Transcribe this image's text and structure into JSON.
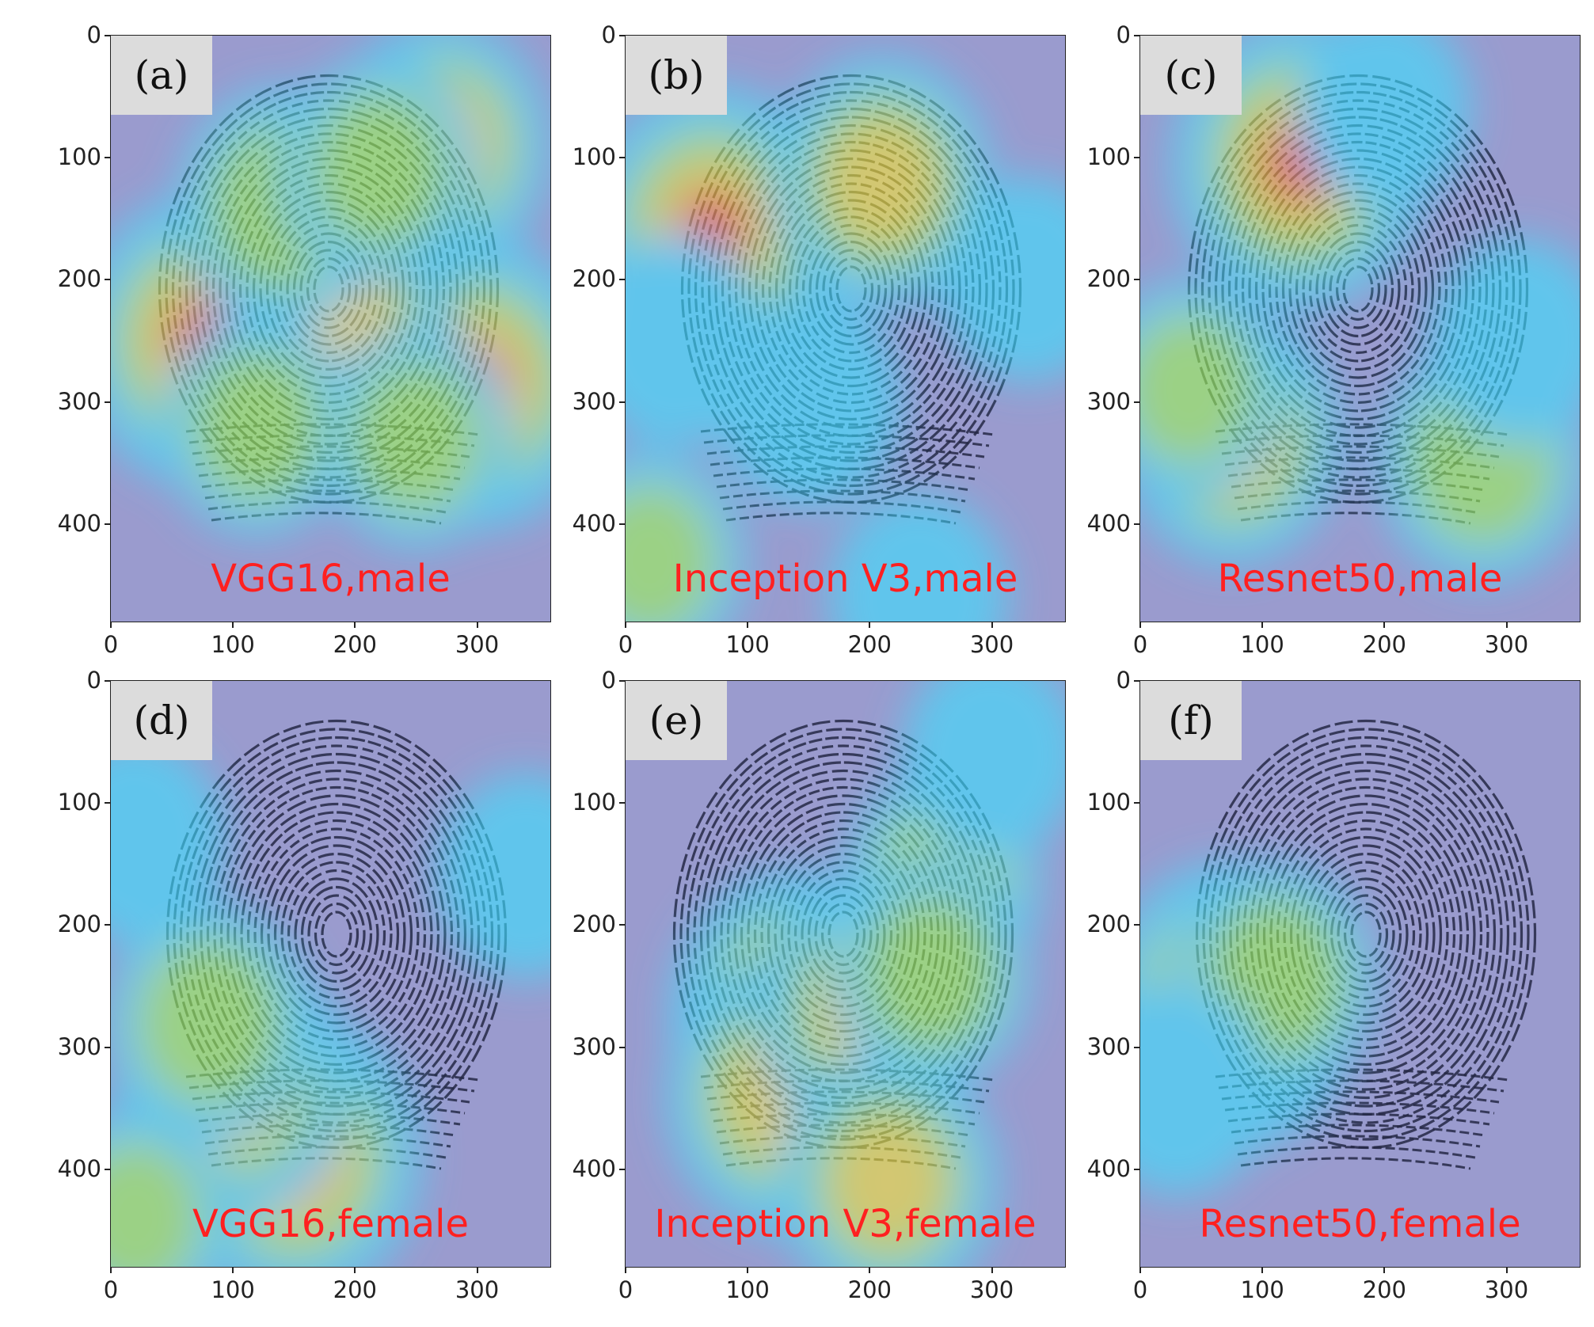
{
  "figure": {
    "caption_color": "#ff2020",
    "axis": {
      "x_ticks": [
        0,
        100,
        200,
        300
      ],
      "y_ticks": [
        0,
        100,
        200,
        300,
        400
      ],
      "x_range": [
        0,
        360
      ],
      "y_range": [
        0,
        480
      ]
    },
    "panels": [
      {
        "tag": "(a)",
        "caption": "VGG16,male",
        "hotspots": [
          {
            "x": 75,
            "y": 250,
            "level": 1.0
          },
          {
            "x": 300,
            "y": 285,
            "level": 1.0
          },
          {
            "x": 185,
            "y": 230,
            "level": 0.8
          },
          {
            "x": 270,
            "y": 90,
            "level": 0.7
          },
          {
            "x": 140,
            "y": 140,
            "level": 0.6
          },
          {
            "x": 220,
            "y": 110,
            "level": 0.5
          },
          {
            "x": 120,
            "y": 320,
            "level": 0.45
          },
          {
            "x": 250,
            "y": 330,
            "level": 0.45
          }
        ]
      },
      {
        "tag": "(b)",
        "caption": "Inception V3,male",
        "hotspots": [
          {
            "x": 70,
            "y": 160,
            "level": 1.0
          },
          {
            "x": 210,
            "y": 120,
            "level": 0.7
          },
          {
            "x": 40,
            "y": 250,
            "level": 0.4
          },
          {
            "x": 20,
            "y": 430,
            "level": 0.45
          },
          {
            "x": 150,
            "y": 300,
            "level": 0.4
          },
          {
            "x": 330,
            "y": 200,
            "level": 0.35
          },
          {
            "x": 240,
            "y": 460,
            "level": 0.35
          }
        ]
      },
      {
        "tag": "(c)",
        "caption": "Resnet50,male",
        "hotspots": [
          {
            "x": 130,
            "y": 105,
            "level": 1.0
          },
          {
            "x": 75,
            "y": 330,
            "level": 0.7
          },
          {
            "x": 280,
            "y": 350,
            "level": 0.6
          },
          {
            "x": 40,
            "y": 290,
            "level": 0.45
          },
          {
            "x": 310,
            "y": 250,
            "level": 0.35
          },
          {
            "x": 200,
            "y": 60,
            "level": 0.3
          }
        ]
      },
      {
        "tag": "(d)",
        "caption": "VGG16,female",
        "hotspots": [
          {
            "x": 150,
            "y": 390,
            "level": 1.0
          },
          {
            "x": 100,
            "y": 330,
            "level": 0.85
          },
          {
            "x": 80,
            "y": 280,
            "level": 0.6
          },
          {
            "x": 20,
            "y": 440,
            "level": 0.45
          },
          {
            "x": 340,
            "y": 160,
            "level": 0.35
          },
          {
            "x": 20,
            "y": 130,
            "level": 0.35
          }
        ]
      },
      {
        "tag": "(e)",
        "caption": "Inception V3,female",
        "hotspots": [
          {
            "x": 140,
            "y": 275,
            "level": 1.0
          },
          {
            "x": 130,
            "y": 340,
            "level": 0.85
          },
          {
            "x": 200,
            "y": 270,
            "level": 0.75
          },
          {
            "x": 215,
            "y": 410,
            "level": 0.7
          },
          {
            "x": 260,
            "y": 165,
            "level": 0.5
          },
          {
            "x": 250,
            "y": 240,
            "level": 0.5
          },
          {
            "x": 300,
            "y": 60,
            "level": 0.35
          }
        ]
      },
      {
        "tag": "(f)",
        "caption": "Resnet50,female",
        "hotspots": [
          {
            "x": 72,
            "y": 268,
            "level": 1.0
          },
          {
            "x": 110,
            "y": 245,
            "level": 0.55
          },
          {
            "x": 30,
            "y": 335,
            "level": 0.4
          }
        ]
      }
    ]
  }
}
